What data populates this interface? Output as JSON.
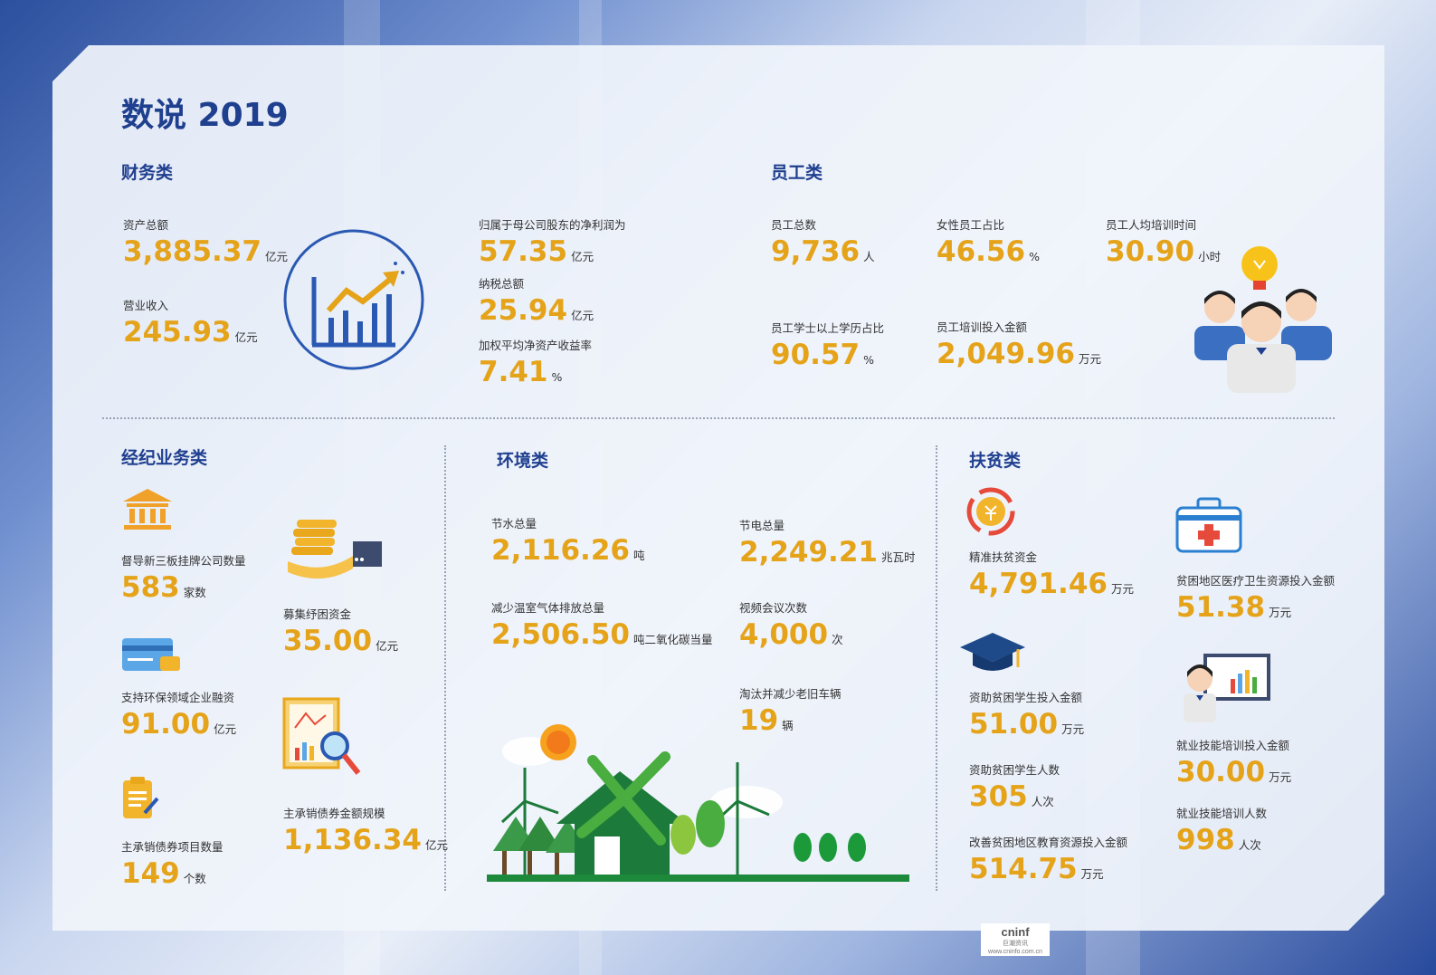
{
  "page_title": "数说 2019",
  "finance": {
    "title": "财务类",
    "items": [
      {
        "label": "资产总额",
        "value": "3,885.37",
        "unit": "亿元"
      },
      {
        "label": "营业收入",
        "value": "245.93",
        "unit": "亿元"
      },
      {
        "label": "归属于母公司股东的净利润为",
        "value": "57.35",
        "unit": "亿元"
      },
      {
        "label": "纳税总额",
        "value": "25.94",
        "unit": "亿元"
      },
      {
        "label": "加权平均净资产收益率",
        "value": "7.41",
        "unit": "%"
      }
    ]
  },
  "staff": {
    "title": "员工类",
    "items": [
      {
        "label": "员工总数",
        "value": "9,736",
        "unit": "人"
      },
      {
        "label": "女性员工占比",
        "value": "46.56",
        "unit": "%"
      },
      {
        "label": "员工人均培训时间",
        "value": "30.90",
        "unit": "小时"
      },
      {
        "label": "员工学士以上学历占比",
        "value": "90.57",
        "unit": "%"
      },
      {
        "label": "员工培训投入金额",
        "value": "2,049.96",
        "unit": "万元"
      }
    ]
  },
  "brokerage": {
    "title": "经纪业务类",
    "items": [
      {
        "label": "督导新三板挂牌公司数量",
        "value": "583",
        "unit": "家数"
      },
      {
        "label": "募集纾困资金",
        "value": "35.00",
        "unit": "亿元"
      },
      {
        "label": "支持环保领域企业融资",
        "value": "91.00",
        "unit": "亿元"
      },
      {
        "label": "主承销债券金额规模",
        "value": "1,136.34",
        "unit": "亿元"
      },
      {
        "label": "主承销债券项目数量",
        "value": "149",
        "unit": "个数"
      }
    ]
  },
  "environment": {
    "title": "环境类",
    "items": [
      {
        "label": "节水总量",
        "value": "2,116.26",
        "unit": "吨"
      },
      {
        "label": "节电总量",
        "value": "2,249.21",
        "unit": "兆瓦时"
      },
      {
        "label": "减少温室气体排放总量",
        "value": "2,506.50",
        "unit": "吨二氧化碳当量"
      },
      {
        "label": "视频会议次数",
        "value": "4,000",
        "unit": "次"
      },
      {
        "label": "淘汰并减少老旧车辆",
        "value": "19",
        "unit": "辆"
      }
    ]
  },
  "poverty": {
    "title": "扶贫类",
    "items": [
      {
        "label": "精准扶贫资金",
        "value": "4,791.46",
        "unit": "万元"
      },
      {
        "label": "贫困地区医疗卫生资源投入金额",
        "value": "51.38",
        "unit": "万元"
      },
      {
        "label": "资助贫困学生投入金额",
        "value": "51.00",
        "unit": "万元"
      },
      {
        "label": "就业技能培训投入金额",
        "value": "30.00",
        "unit": "万元"
      },
      {
        "label": "资助贫困学生人数",
        "value": "305",
        "unit": "人次"
      },
      {
        "label": "就业技能培训人数",
        "value": "998",
        "unit": "人次"
      },
      {
        "label": "改善贫困地区教育资源投入金额",
        "value": "514.75",
        "unit": "万元"
      }
    ]
  },
  "footer": {
    "brand": "cninf",
    "cn": "巨潮资讯",
    "url": "www.cninfo.com.cn"
  },
  "colors": {
    "heading": "#1f3f8f",
    "value": "#e5a31a",
    "text": "#333333"
  }
}
